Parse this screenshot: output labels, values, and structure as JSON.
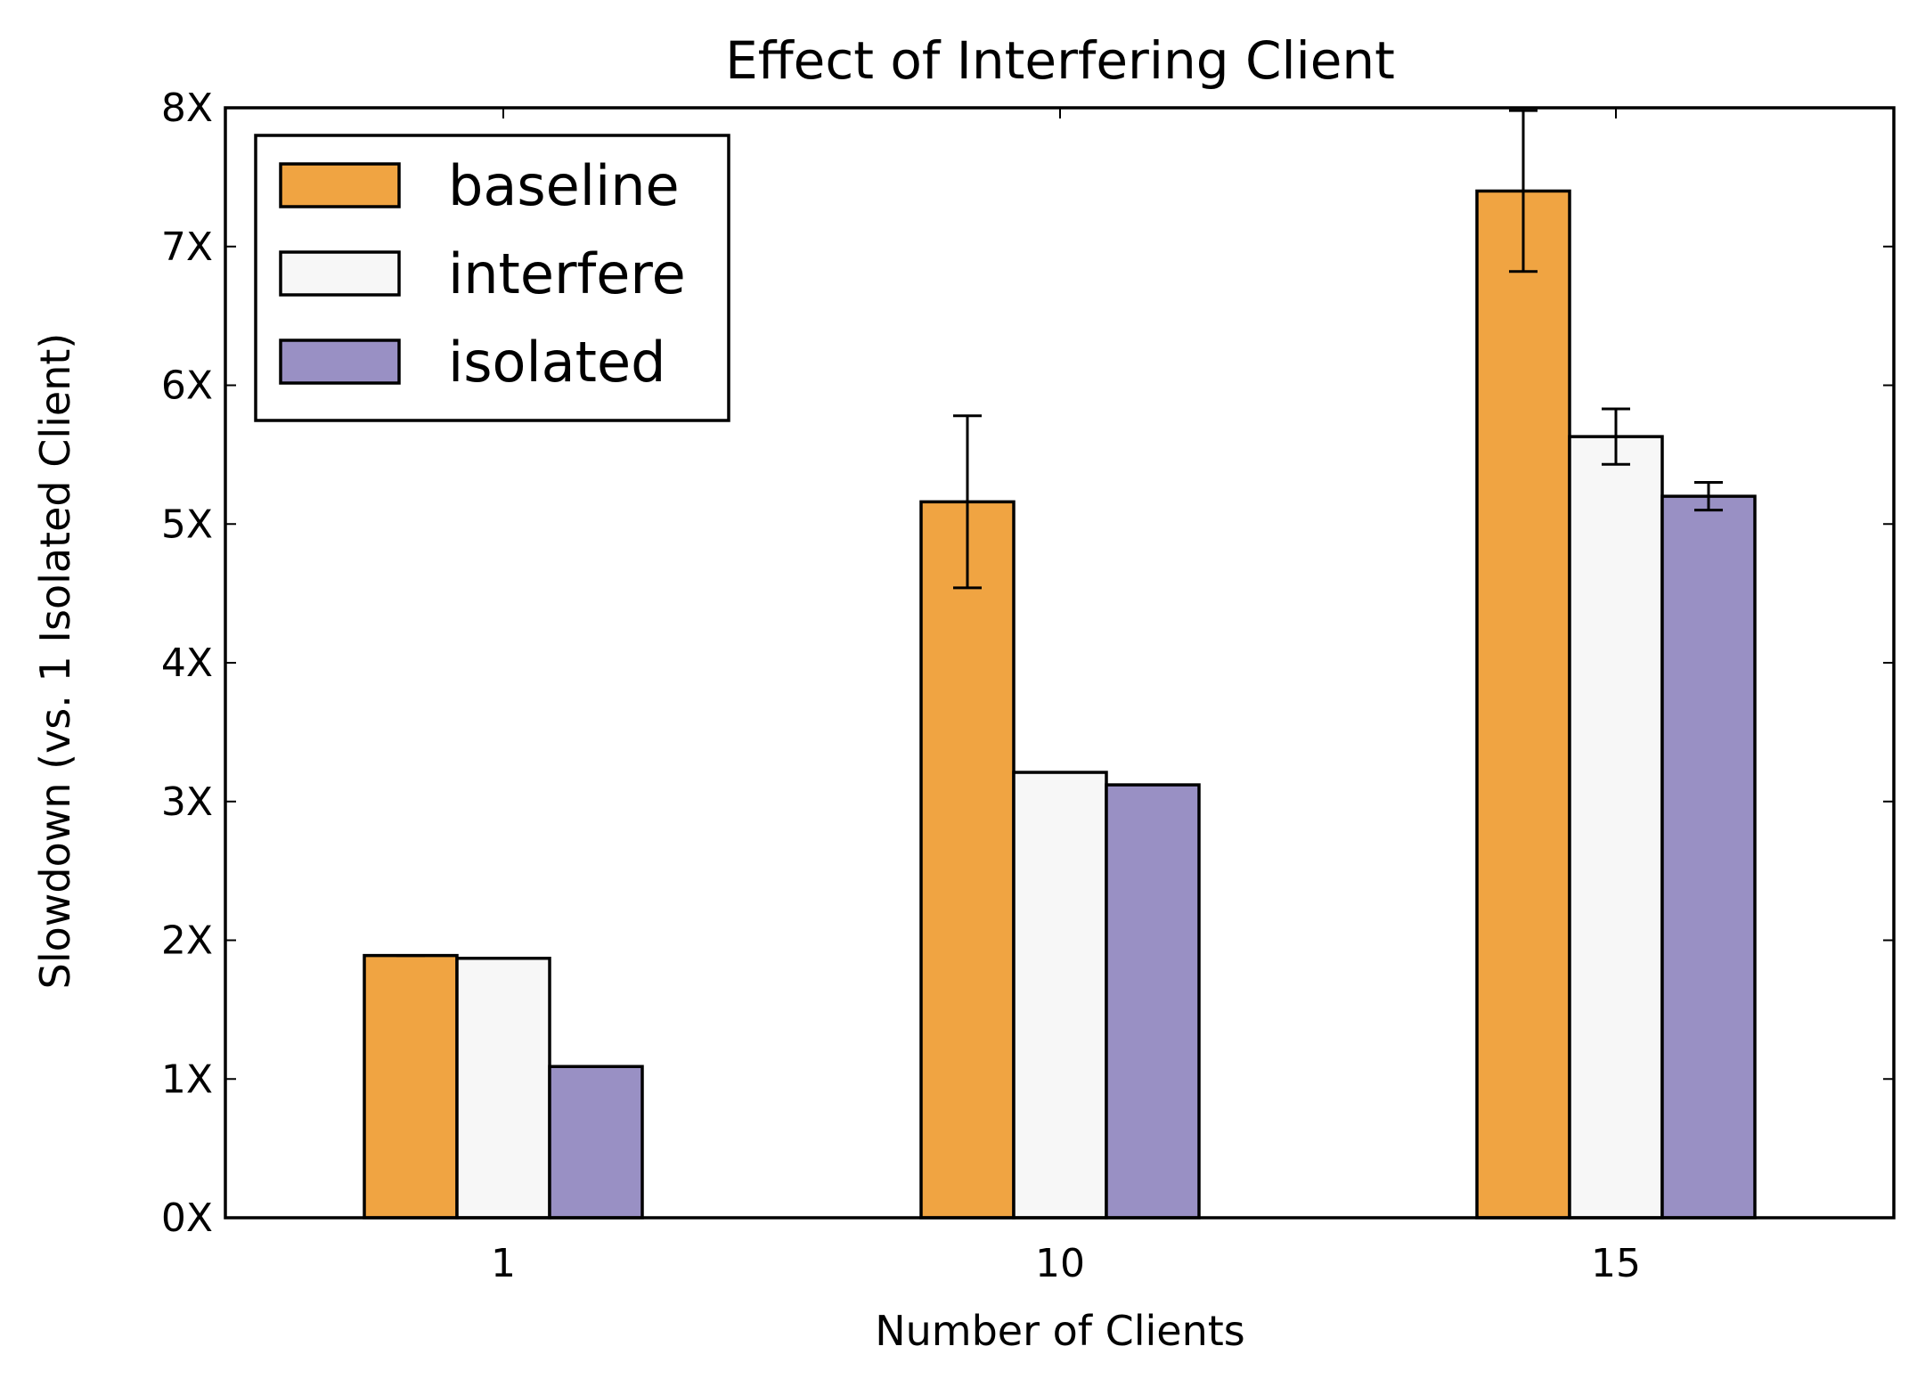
{
  "chart_data": {
    "type": "bar",
    "title": "Effect of Interfering Client",
    "xlabel": "Number of Clients",
    "ylabel": "Slowdown (vs. 1 Isolated Client)",
    "categories": [
      "1",
      "10",
      "15"
    ],
    "ylim": [
      0,
      8
    ],
    "yticks": [
      0,
      1,
      2,
      3,
      4,
      5,
      6,
      7,
      8
    ],
    "ytick_labels": [
      "0X",
      "1X",
      "2X",
      "3X",
      "4X",
      "5X",
      "6X",
      "7X",
      "8X"
    ],
    "legend_position": "top-left",
    "grid": false,
    "series": [
      {
        "name": "baseline",
        "color": "#f0a442",
        "values": [
          1.89,
          5.16,
          7.4
        ],
        "errors": [
          0.0,
          0.62,
          0.58
        ]
      },
      {
        "name": "interfere",
        "color": "#f7f7f7",
        "values": [
          1.87,
          3.21,
          5.63
        ],
        "errors": [
          0.0,
          0.0,
          0.2
        ]
      },
      {
        "name": "isolated",
        "color": "#9990c4",
        "values": [
          1.09,
          3.12,
          5.2
        ],
        "errors": [
          0.0,
          0.0,
          0.1
        ]
      }
    ]
  }
}
